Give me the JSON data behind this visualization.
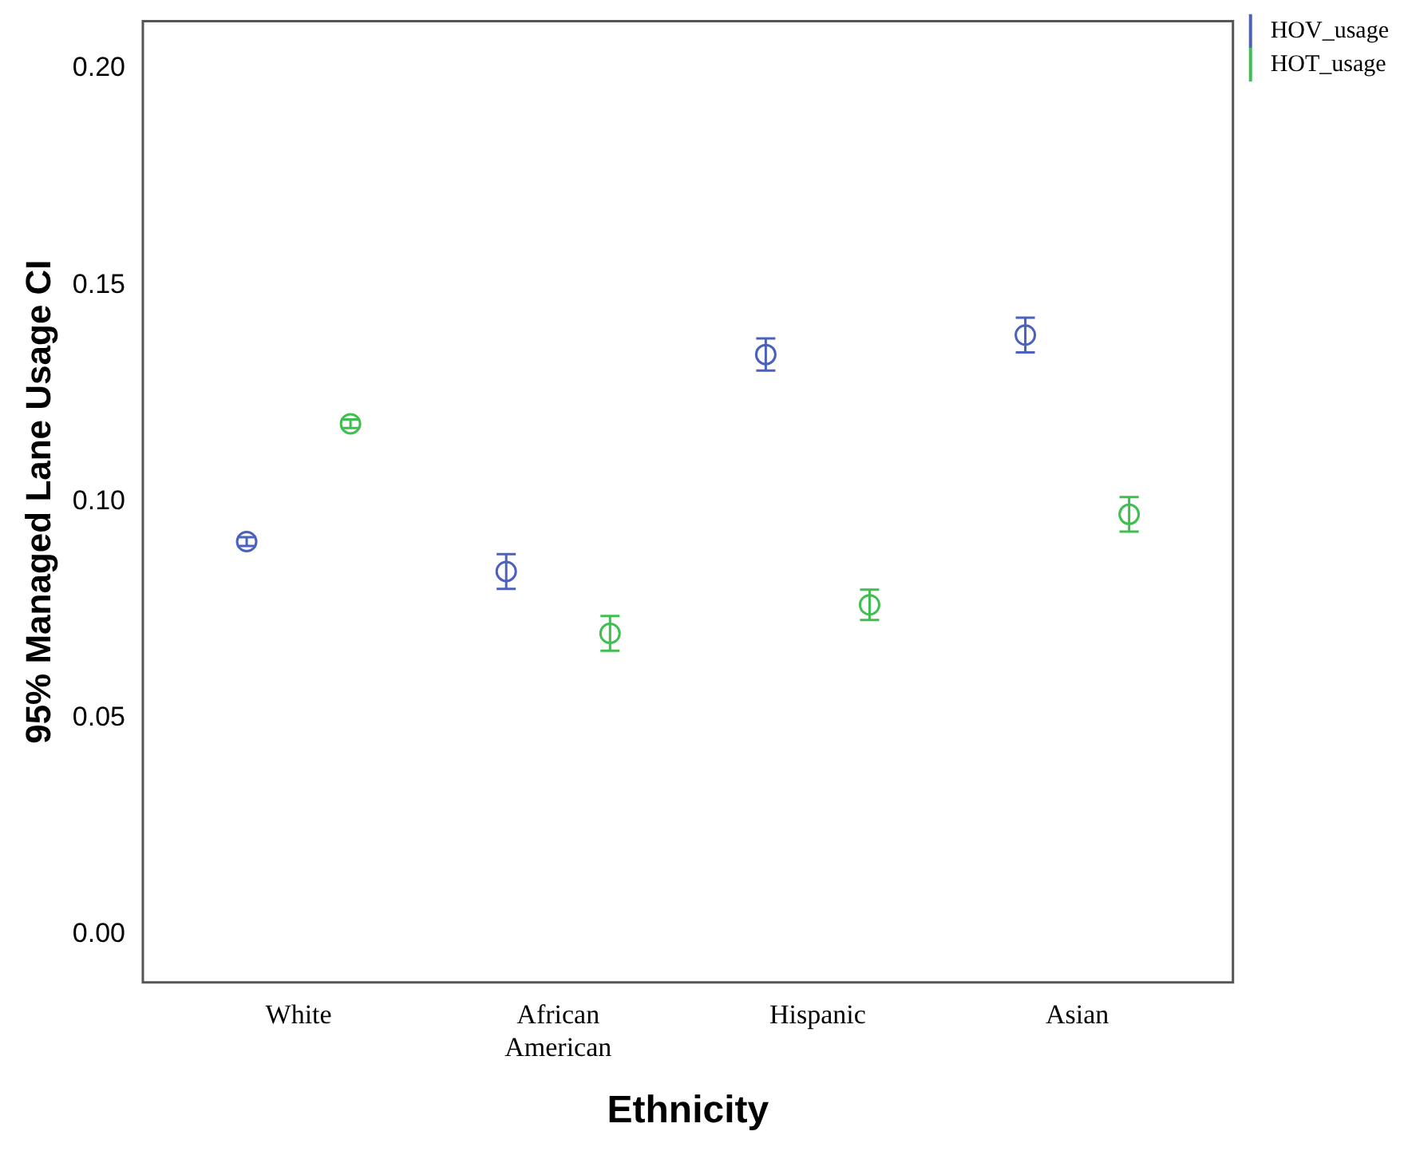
{
  "chart_data": {
    "type": "scatter",
    "xlabel": "Ethnicity",
    "ylabel": "95% Managed Lane Usage CI",
    "categories": [
      "White",
      "African American",
      "Hispanic",
      "Asian"
    ],
    "series": [
      {
        "name": "HOV_usage",
        "color": "#4a62bd",
        "values": [
          0.0908,
          0.0839,
          0.134,
          0.1385
        ],
        "errors": [
          0.001,
          0.004,
          0.0037,
          0.004
        ]
      },
      {
        "name": "HOT_usage",
        "color": "#3fbf4f",
        "values": [
          0.118,
          0.0696,
          0.0762,
          0.0971
        ],
        "errors": [
          0.001,
          0.004,
          0.0035,
          0.004
        ]
      }
    ],
    "ylim": [
      -0.011,
      0.211
    ],
    "yticks": [
      {
        "value": 0,
        "label": "0.00"
      },
      {
        "value": 0.05,
        "label": "0.05"
      },
      {
        "value": 0.1,
        "label": "0.10"
      },
      {
        "value": 0.15,
        "label": "0.15"
      },
      {
        "value": 0.2,
        "label": "0.20"
      }
    ],
    "marker": "circle",
    "grid": false,
    "legend": "top right"
  }
}
